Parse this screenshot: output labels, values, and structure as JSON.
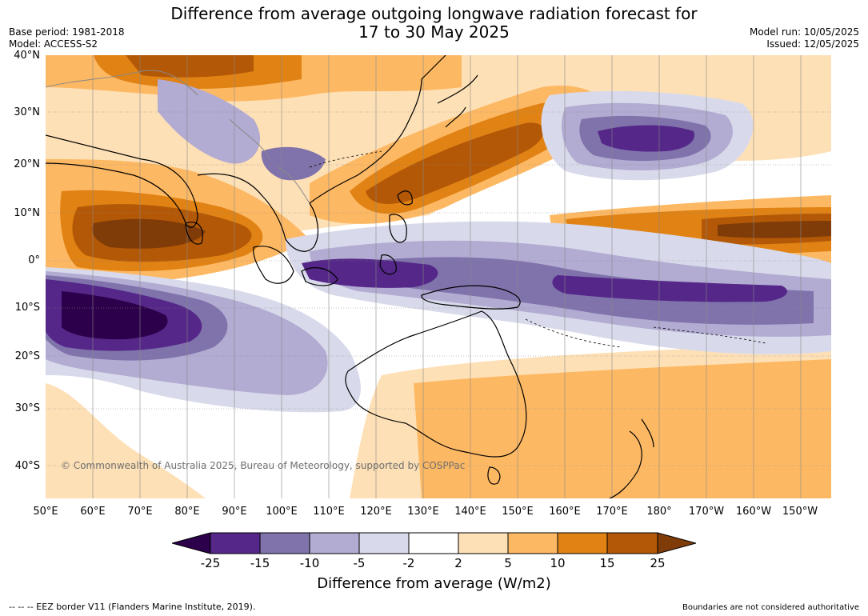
{
  "header": {
    "title_line1": "Difference from average outgoing longwave radiation forecast for",
    "title_line2": "17 to 30 May 2025",
    "base_period": "Base period: 1981-2018",
    "model": "Model: ACCESS-S2",
    "model_run": "Model run: 10/05/2025",
    "issued": "Issued: 12/05/2025"
  },
  "map": {
    "latitude_labels": [
      "40°N",
      "30°N",
      "20°N",
      "10°N",
      "0°",
      "10°S",
      "20°S",
      "30°S",
      "40°S"
    ],
    "longitude_labels": [
      "50°E",
      "60°E",
      "70°E",
      "80°E",
      "90°E",
      "100°E",
      "110°E",
      "120°E",
      "130°E",
      "140°E",
      "150°E",
      "160°E",
      "170°E",
      "180°",
      "170°W",
      "160°W",
      "150°W"
    ],
    "copyright": "© Commonwealth of Australia 2025, Bureau of Meteorology, supported by COSPPac"
  },
  "colorbar": {
    "title": "Difference from average (W/m2)",
    "ticks": [
      "-25",
      "-15",
      "-10",
      "-5",
      "-2",
      "2",
      "5",
      "10",
      "15",
      "25"
    ],
    "colors": [
      "#2d004b",
      "#542788",
      "#8073ac",
      "#b2abd2",
      "#d8daeb",
      "#ffffff",
      "#fee0b6",
      "#fdb863",
      "#e08214",
      "#b35806",
      "#7f3b08"
    ]
  },
  "footer": {
    "eez_legend": "--  --  -- EEZ border V11 (Flanders Marine Institute, 2019).",
    "boundaries_note": "Boundaries are not considered authoritative"
  }
}
